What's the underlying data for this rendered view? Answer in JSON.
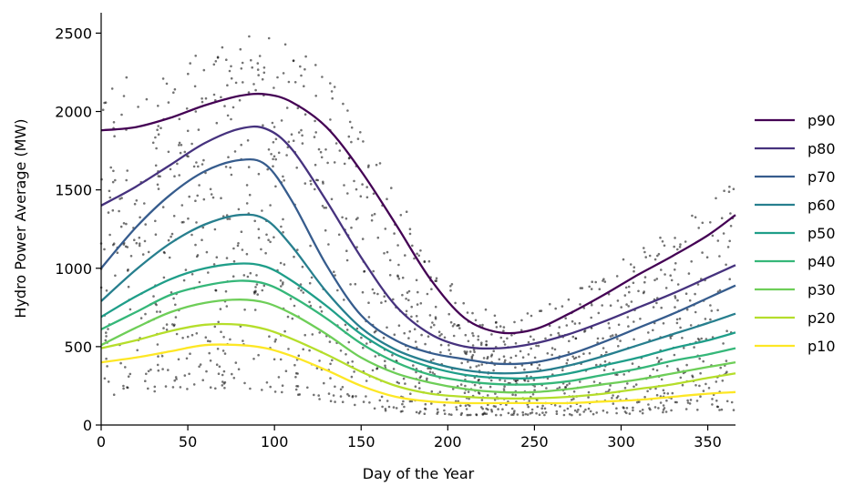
{
  "chart_data": {
    "type": "line",
    "title": "",
    "xlabel": "Day of the Year",
    "ylabel": "Hydro Power Average (MW)",
    "xlim": [
      0,
      366
    ],
    "ylim": [
      0,
      2630
    ],
    "xticks": [
      0,
      50,
      100,
      150,
      200,
      250,
      300,
      350
    ],
    "yticks": [
      0,
      500,
      1000,
      1500,
      2000,
      2500
    ],
    "grid": false,
    "legend_position": "right",
    "scatter_color": "#000000",
    "series": [
      {
        "name": "p90",
        "color": "#440154",
        "x": [
          0,
          20,
          40,
          60,
          80,
          95,
          110,
          130,
          150,
          170,
          190,
          210,
          230,
          250,
          270,
          290,
          310,
          330,
          350,
          366
        ],
        "values": [
          1880,
          1900,
          1960,
          2040,
          2100,
          2110,
          2060,
          1900,
          1620,
          1280,
          930,
          680,
          590,
          610,
          710,
          830,
          960,
          1080,
          1210,
          1340
        ]
      },
      {
        "name": "p80",
        "color": "#46327e",
        "x": [
          0,
          20,
          40,
          60,
          80,
          95,
          110,
          130,
          150,
          170,
          190,
          210,
          230,
          250,
          270,
          290,
          310,
          330,
          350,
          366
        ],
        "values": [
          1400,
          1520,
          1660,
          1800,
          1890,
          1890,
          1760,
          1430,
          1070,
          760,
          580,
          500,
          490,
          520,
          580,
          660,
          750,
          840,
          940,
          1020
        ]
      },
      {
        "name": "p70",
        "color": "#365c8d",
        "x": [
          0,
          20,
          40,
          60,
          80,
          95,
          110,
          130,
          150,
          170,
          190,
          210,
          230,
          250,
          270,
          290,
          310,
          330,
          350,
          366
        ],
        "values": [
          1000,
          1260,
          1470,
          1620,
          1690,
          1660,
          1430,
          1020,
          700,
          540,
          460,
          420,
          390,
          400,
          450,
          530,
          620,
          710,
          810,
          890
        ]
      },
      {
        "name": "p60",
        "color": "#277f8e",
        "x": [
          0,
          20,
          40,
          60,
          80,
          95,
          110,
          130,
          150,
          170,
          190,
          210,
          230,
          250,
          270,
          290,
          310,
          330,
          350,
          366
        ],
        "values": [
          790,
          990,
          1160,
          1280,
          1340,
          1310,
          1140,
          850,
          620,
          480,
          400,
          350,
          330,
          340,
          380,
          440,
          510,
          580,
          650,
          710
        ]
      },
      {
        "name": "p50",
        "color": "#1f9e89",
        "x": [
          0,
          20,
          40,
          60,
          80,
          95,
          110,
          130,
          150,
          170,
          190,
          210,
          230,
          250,
          270,
          290,
          310,
          330,
          350,
          366
        ],
        "values": [
          690,
          820,
          930,
          1000,
          1030,
          1010,
          920,
          760,
          580,
          450,
          370,
          320,
          300,
          300,
          330,
          380,
          430,
          490,
          540,
          590
        ]
      },
      {
        "name": "p40",
        "color": "#35b779",
        "x": [
          0,
          20,
          40,
          60,
          80,
          95,
          110,
          130,
          150,
          170,
          190,
          210,
          230,
          250,
          270,
          290,
          310,
          330,
          350,
          366
        ],
        "values": [
          610,
          720,
          830,
          890,
          920,
          900,
          820,
          680,
          520,
          400,
          320,
          280,
          260,
          260,
          280,
          320,
          360,
          410,
          450,
          490
        ]
      },
      {
        "name": "p30",
        "color": "#6ece58",
        "x": [
          0,
          20,
          40,
          60,
          80,
          95,
          110,
          130,
          150,
          170,
          190,
          210,
          230,
          250,
          270,
          290,
          310,
          330,
          350,
          366
        ],
        "values": [
          510,
          620,
          720,
          780,
          800,
          780,
          710,
          580,
          430,
          330,
          270,
          230,
          210,
          210,
          230,
          260,
          290,
          330,
          370,
          400
        ]
      },
      {
        "name": "p20",
        "color": "#b5de2b",
        "x": [
          0,
          20,
          40,
          60,
          80,
          95,
          110,
          130,
          150,
          170,
          190,
          210,
          230,
          250,
          270,
          290,
          310,
          330,
          350,
          366
        ],
        "values": [
          490,
          540,
          600,
          640,
          640,
          610,
          550,
          450,
          340,
          250,
          200,
          180,
          170,
          170,
          180,
          200,
          230,
          260,
          300,
          330
        ]
      },
      {
        "name": "p10",
        "color": "#fde725",
        "x": [
          0,
          20,
          40,
          60,
          80,
          95,
          110,
          130,
          150,
          170,
          190,
          210,
          230,
          250,
          270,
          290,
          310,
          330,
          350,
          366
        ],
        "values": [
          400,
          430,
          470,
          510,
          510,
          490,
          440,
          350,
          250,
          180,
          150,
          140,
          140,
          140,
          140,
          150,
          160,
          180,
          200,
          210
        ]
      }
    ]
  }
}
